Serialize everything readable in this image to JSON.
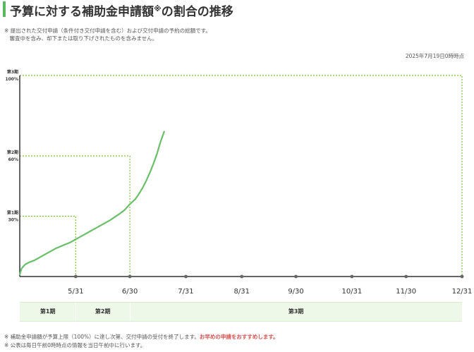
{
  "header": {
    "title": "予算に対する補助金申請額",
    "title_mark": "※",
    "title_suffix": "の割合の推移"
  },
  "notes_top": [
    "※ 提出された交付申請（条件付き交付申請を含む）および交付申請の予約の総額です。",
    "　審査中を含み、却下または取り下げされたものを含みません。"
  ],
  "as_of": "2025年7月19日0時時点",
  "notes_bottom": {
    "line1_prefix": "※ 補助金申請額が予算上限（100%）に達し次第、交付申請の受付を終了します。",
    "line1_emphasis": "お早めの申請をおすすめします。",
    "line2": "※ 公表は毎日午前0時時点の情報を当日午前中に行います。"
  },
  "periods": [
    {
      "label": "第1期",
      "start_day": 0,
      "end_day": 31
    },
    {
      "label": "第2期",
      "start_day": 31,
      "end_day": 61
    },
    {
      "label": "第3期",
      "start_day": 61,
      "end_day": 245
    }
  ],
  "colors": {
    "accent": "#5cb85c",
    "line": "#6abf69",
    "dotted": "#7dc142",
    "axis": "#333333",
    "marker": "#666666",
    "period_bg": "#eef8e8",
    "emphasis": "#d9534f"
  },
  "chart_data": {
    "type": "line",
    "title": "予算に対する補助金申請額※の割合の推移",
    "xlabel": "",
    "ylabel": "",
    "x_unit": "days since start (tick labels are month-end dates)",
    "xlim": [
      0,
      245
    ],
    "ylim": [
      0,
      100
    ],
    "grid": false,
    "x_ticks": [
      {
        "day": 31,
        "label": "5/31"
      },
      {
        "day": 61,
        "label": "6/30"
      },
      {
        "day": 92,
        "label": "7/31"
      },
      {
        "day": 123,
        "label": "8/31"
      },
      {
        "day": 153,
        "label": "9/30"
      },
      {
        "day": 184,
        "label": "10/31"
      },
      {
        "day": 214,
        "label": "11/30"
      },
      {
        "day": 245,
        "label": "12/31"
      }
    ],
    "thresholds": [
      {
        "period": "第1期",
        "percent_label": "30%",
        "value": 30,
        "end_day": 31
      },
      {
        "period": "第2期",
        "percent_label": "60%",
        "value": 60,
        "end_day": 61
      },
      {
        "period": "第3期",
        "percent_label": "100%",
        "value": 100,
        "end_day": 245
      }
    ],
    "series": [
      {
        "name": "",
        "x": [
          0,
          1,
          3,
          5,
          8,
          12,
          16,
          20,
          24,
          28,
          31,
          35,
          40,
          45,
          50,
          55,
          58,
          61,
          64,
          66,
          68,
          70,
          72,
          74,
          76,
          78,
          80
        ],
        "y": [
          1,
          4,
          6,
          7,
          8,
          10,
          12,
          14,
          15.5,
          17,
          18.5,
          20.5,
          23,
          25.5,
          28,
          31,
          33,
          36,
          38.5,
          41,
          44,
          47.5,
          51.5,
          56,
          61,
          67,
          72
        ]
      }
    ]
  }
}
